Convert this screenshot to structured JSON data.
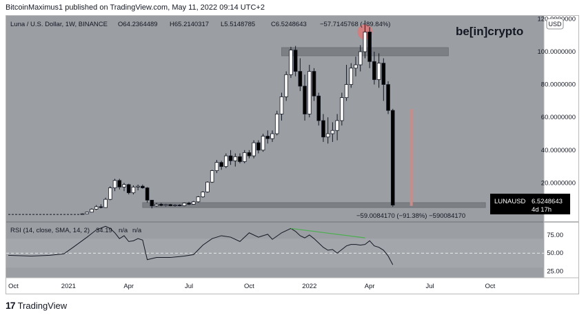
{
  "header": {
    "published_text": "BitcoinMaximus1 published on TradingView.com, May 11, 2022 09:14 UTC+2"
  },
  "footer": {
    "logo_text": "TradingView"
  },
  "watermark": {
    "brand": "be[in]crypto"
  },
  "legend": {
    "symbol": "Luna / U.S. Dollar, 1W, BINANCE",
    "open": "O64.2364489",
    "high": "H65.2140317",
    "low": "L5.5148785",
    "close": "C6.5248643",
    "change": "−57.7145768 (−89.84%)"
  },
  "currency_badge": "USD",
  "price_label": {
    "symbol": "LUNAUSD",
    "value": "6.5248643",
    "countdown": "4d 17h"
  },
  "measure_label": "−59.0084170 (−91.38%) −590084170",
  "rsi_legend": {
    "label": "RSI (14, close, SMA, 14, 2)",
    "value": "34.19",
    "na1": "n/a",
    "na2": "n/a"
  },
  "colors": {
    "background": "#9b9ea3",
    "up_candle": "#ffffff",
    "down_candle": "#000000",
    "resistance_zone": "#7c7f84",
    "highlight_circle": "#e57373",
    "measure_bar": "#c98c88",
    "divergence_line": "#4caf50"
  },
  "chart_data": [
    {
      "type": "candlestick",
      "interval": "1W",
      "ylim": [
        0,
        120
      ],
      "y_ticks": [
        20,
        40,
        60,
        80,
        100,
        120
      ],
      "y_tick_labels": [
        "20.0000000",
        "40.0000000",
        "60.0000000",
        "80.0000000",
        "100.0000000",
        "120.0000000"
      ],
      "x_tick_labels": [
        "Oct",
        "2021",
        "Apr",
        "Jul",
        "Oct",
        "2022",
        "Apr",
        "Jul",
        "Oct"
      ],
      "x_tick_index": [
        0,
        13,
        26,
        39,
        52,
        65,
        78,
        91,
        104
      ],
      "pre_listing_line": {
        "from_index": 0,
        "to_index": 16,
        "value": 0.8
      },
      "candles": [
        {
          "i": 16,
          "o": 0.8,
          "h": 1.5,
          "l": 0.6,
          "c": 1.2
        },
        {
          "i": 17,
          "o": 1.2,
          "h": 2.5,
          "l": 1.0,
          "c": 2.2
        },
        {
          "i": 18,
          "o": 2.2,
          "h": 4.5,
          "l": 2.0,
          "c": 4.0
        },
        {
          "i": 19,
          "o": 4.0,
          "h": 6.5,
          "l": 3.5,
          "c": 5.5
        },
        {
          "i": 20,
          "o": 5.5,
          "h": 7.0,
          "l": 4.5,
          "c": 5.0
        },
        {
          "i": 21,
          "o": 5.0,
          "h": 11.0,
          "l": 4.8,
          "c": 10.0
        },
        {
          "i": 22,
          "o": 10.0,
          "h": 18.0,
          "l": 9.5,
          "c": 17.0
        },
        {
          "i": 23,
          "o": 17.0,
          "h": 22.5,
          "l": 15.0,
          "c": 21.5
        },
        {
          "i": 24,
          "o": 21.5,
          "h": 22.5,
          "l": 16.0,
          "c": 17.5
        },
        {
          "i": 25,
          "o": 17.5,
          "h": 20.0,
          "l": 15.0,
          "c": 19.0
        },
        {
          "i": 26,
          "o": 19.0,
          "h": 19.5,
          "l": 13.0,
          "c": 14.0
        },
        {
          "i": 27,
          "o": 14.0,
          "h": 18.5,
          "l": 13.0,
          "c": 17.5
        },
        {
          "i": 28,
          "o": 17.5,
          "h": 19.0,
          "l": 15.5,
          "c": 18.0
        },
        {
          "i": 29,
          "o": 18.0,
          "h": 19.0,
          "l": 16.5,
          "c": 17.0
        },
        {
          "i": 30,
          "o": 17.0,
          "h": 17.5,
          "l": 8.0,
          "c": 9.5
        },
        {
          "i": 31,
          "o": 9.5,
          "h": 9.0,
          "l": 4.5,
          "c": 6.0
        },
        {
          "i": 32,
          "o": 6.0,
          "h": 7.8,
          "l": 5.5,
          "c": 7.0
        },
        {
          "i": 33,
          "o": 7.0,
          "h": 7.8,
          "l": 5.8,
          "c": 6.3
        },
        {
          "i": 34,
          "o": 6.3,
          "h": 7.2,
          "l": 5.7,
          "c": 6.8
        },
        {
          "i": 35,
          "o": 6.8,
          "h": 7.2,
          "l": 5.8,
          "c": 6.1
        },
        {
          "i": 36,
          "o": 6.1,
          "h": 7.0,
          "l": 5.5,
          "c": 6.5
        },
        {
          "i": 37,
          "o": 6.5,
          "h": 7.0,
          "l": 5.8,
          "c": 6.1
        },
        {
          "i": 38,
          "o": 6.1,
          "h": 8.0,
          "l": 5.8,
          "c": 7.7
        },
        {
          "i": 39,
          "o": 7.7,
          "h": 8.5,
          "l": 6.5,
          "c": 7.0
        },
        {
          "i": 40,
          "o": 7.0,
          "h": 9.0,
          "l": 6.8,
          "c": 8.5
        },
        {
          "i": 41,
          "o": 8.5,
          "h": 12.0,
          "l": 8.0,
          "c": 11.5
        },
        {
          "i": 42,
          "o": 11.5,
          "h": 15.0,
          "l": 11.0,
          "c": 14.5
        },
        {
          "i": 43,
          "o": 14.5,
          "h": 21.0,
          "l": 14.0,
          "c": 20.5
        },
        {
          "i": 44,
          "o": 20.5,
          "h": 28.0,
          "l": 20.0,
          "c": 27.5
        },
        {
          "i": 45,
          "o": 27.5,
          "h": 34.0,
          "l": 26.0,
          "c": 32.5
        },
        {
          "i": 46,
          "o": 32.5,
          "h": 33.5,
          "l": 28.0,
          "c": 30.0
        },
        {
          "i": 47,
          "o": 30.0,
          "h": 38.0,
          "l": 29.0,
          "c": 36.5
        },
        {
          "i": 48,
          "o": 36.5,
          "h": 40.0,
          "l": 31.0,
          "c": 33.5
        },
        {
          "i": 49,
          "o": 33.5,
          "h": 38.0,
          "l": 30.0,
          "c": 36.0
        },
        {
          "i": 50,
          "o": 36.0,
          "h": 38.0,
          "l": 32.0,
          "c": 33.0
        },
        {
          "i": 51,
          "o": 33.0,
          "h": 40.0,
          "l": 32.0,
          "c": 38.5
        },
        {
          "i": 52,
          "o": 38.5,
          "h": 40.0,
          "l": 35.0,
          "c": 36.5
        },
        {
          "i": 53,
          "o": 36.5,
          "h": 46.0,
          "l": 35.0,
          "c": 44.5
        },
        {
          "i": 54,
          "o": 44.5,
          "h": 46.0,
          "l": 38.0,
          "c": 40.0
        },
        {
          "i": 55,
          "o": 40.0,
          "h": 50.0,
          "l": 39.0,
          "c": 48.5
        },
        {
          "i": 56,
          "o": 48.5,
          "h": 52.0,
          "l": 44.0,
          "c": 47.0
        },
        {
          "i": 57,
          "o": 47.0,
          "h": 52.0,
          "l": 45.0,
          "c": 50.0
        },
        {
          "i": 58,
          "o": 50.0,
          "h": 64.0,
          "l": 49.0,
          "c": 62.0
        },
        {
          "i": 59,
          "o": 62.0,
          "h": 75.0,
          "l": 58.0,
          "c": 72.5
        },
        {
          "i": 60,
          "o": 72.5,
          "h": 88.0,
          "l": 70.0,
          "c": 86.0
        },
        {
          "i": 61,
          "o": 86.0,
          "h": 103.0,
          "l": 84.0,
          "c": 101.0
        },
        {
          "i": 62,
          "o": 101.0,
          "h": 103.5,
          "l": 85.0,
          "c": 88.0
        },
        {
          "i": 63,
          "o": 88.0,
          "h": 96.0,
          "l": 76.0,
          "c": 79.0
        },
        {
          "i": 64,
          "o": 79.0,
          "h": 86.0,
          "l": 58.0,
          "c": 62.0
        },
        {
          "i": 65,
          "o": 62.0,
          "h": 92.0,
          "l": 60.0,
          "c": 88.0
        },
        {
          "i": 66,
          "o": 88.0,
          "h": 90.0,
          "l": 70.0,
          "c": 73.0
        },
        {
          "i": 67,
          "o": 73.0,
          "h": 75.0,
          "l": 55.0,
          "c": 58.0
        },
        {
          "i": 68,
          "o": 58.0,
          "h": 62.0,
          "l": 45.0,
          "c": 48.0
        },
        {
          "i": 69,
          "o": 48.0,
          "h": 60.0,
          "l": 44.0,
          "c": 50.0
        },
        {
          "i": 70,
          "o": 50.0,
          "h": 57.0,
          "l": 45.0,
          "c": 52.0
        },
        {
          "i": 71,
          "o": 52.0,
          "h": 62.0,
          "l": 46.0,
          "c": 58.0
        },
        {
          "i": 72,
          "o": 58.0,
          "h": 75.0,
          "l": 55.0,
          "c": 72.0
        },
        {
          "i": 73,
          "o": 72.0,
          "h": 92.0,
          "l": 70.0,
          "c": 80.0
        },
        {
          "i": 74,
          "o": 80.0,
          "h": 93.0,
          "l": 78.0,
          "c": 90.0
        },
        {
          "i": 75,
          "o": 90.0,
          "h": 97.0,
          "l": 85.0,
          "c": 92.0
        },
        {
          "i": 76,
          "o": 92.0,
          "h": 104.0,
          "l": 88.0,
          "c": 100.0
        },
        {
          "i": 77,
          "o": 100.0,
          "h": 119.0,
          "l": 96.0,
          "c": 112.0
        },
        {
          "i": 78,
          "o": 112.0,
          "h": 115.0,
          "l": 90.0,
          "c": 94.0
        },
        {
          "i": 79,
          "o": 94.0,
          "h": 100.0,
          "l": 80.0,
          "c": 83.0
        },
        {
          "i": 80,
          "o": 83.0,
          "h": 99.0,
          "l": 78.0,
          "c": 93.0
        },
        {
          "i": 81,
          "o": 93.0,
          "h": 96.0,
          "l": 70.0,
          "c": 80.0
        },
        {
          "i": 82,
          "o": 80.0,
          "h": 82.0,
          "l": 62.0,
          "c": 64.2
        },
        {
          "i": 83,
          "o": 64.2,
          "h": 65.2,
          "l": 5.5,
          "c": 6.5
        }
      ],
      "resistance_zone": {
        "from_index": 59,
        "to_index": 95,
        "low": 97.5,
        "high": 102.5
      },
      "support_zone": {
        "from_index": 29,
        "to_index": 103,
        "low": 5.0,
        "high": 8.0
      },
      "highlight_circle": {
        "index": 77,
        "value": 112
      },
      "measure_bar": {
        "index": 87,
        "from": 6.0,
        "to": 65.0
      }
    },
    {
      "type": "line",
      "name": "RSI (14, close, SMA, 14, 2)",
      "ylim": [
        17,
        92
      ],
      "y_ticks": [
        25,
        50,
        75
      ],
      "y_tick_labels": [
        "25.00",
        "50.00",
        "75.00"
      ],
      "band": [
        30,
        70
      ],
      "midline": 50,
      "series": [
        {
          "name": "RSI",
          "x": [
            0,
            5,
            9,
            12,
            14,
            17,
            19,
            21,
            22,
            23,
            24,
            25,
            26,
            27,
            28,
            29,
            30,
            32,
            35,
            38,
            40,
            42,
            44,
            46,
            48,
            50,
            52,
            54,
            56,
            57,
            59,
            61,
            62,
            63,
            64,
            65,
            66,
            67,
            68,
            69,
            70,
            71,
            72,
            73,
            74,
            75,
            76,
            77,
            78,
            79,
            80,
            81,
            82,
            83
          ],
          "y": [
            47,
            46,
            47,
            49,
            58,
            72,
            82,
            87,
            84,
            78,
            70,
            74,
            66,
            67,
            70,
            68,
            41,
            44,
            44,
            46,
            48,
            61,
            70,
            74,
            72,
            66,
            78,
            72,
            76,
            69,
            78,
            84,
            80,
            74,
            71,
            75,
            70,
            64,
            58,
            54,
            55,
            50,
            55,
            60,
            62,
            62,
            61,
            62,
            67,
            60,
            58,
            54,
            46,
            34
          ]
        },
        {
          "name": "divergence",
          "x": [
            61,
            77
          ],
          "y": [
            84,
            71
          ]
        }
      ]
    }
  ]
}
